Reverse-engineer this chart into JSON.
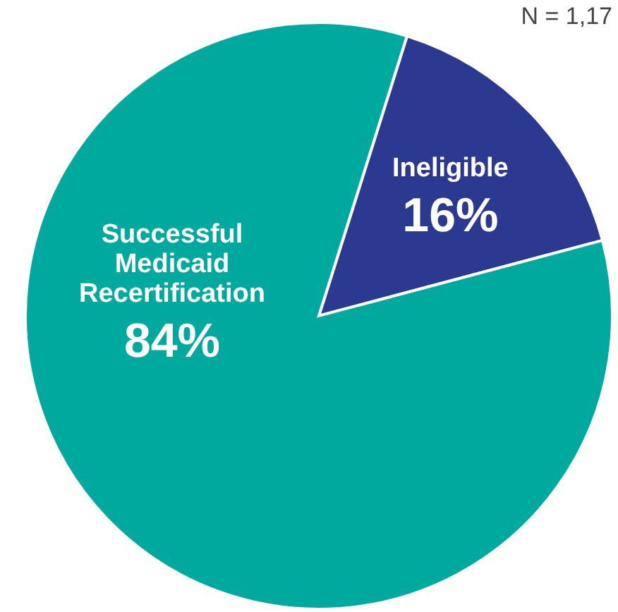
{
  "chart_data": {
    "type": "pie",
    "categories": [
      "Ineligible",
      "Successful Medicaid Recertification"
    ],
    "values": [
      16,
      84
    ],
    "colors": [
      "#2b3990",
      "#00a99d"
    ],
    "value_labels": [
      "16%",
      "84%"
    ],
    "annotations": [
      "N = 1,17"
    ]
  }
}
